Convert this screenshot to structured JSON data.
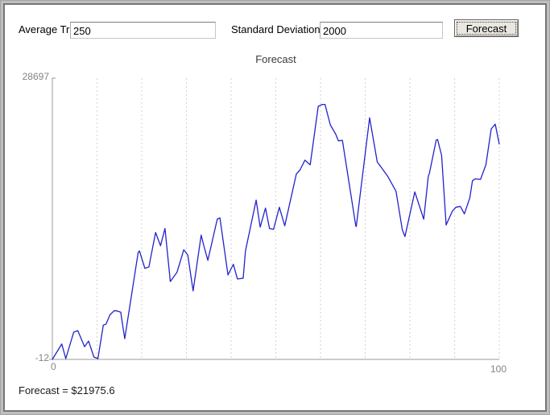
{
  "controls": {
    "average_trade_label": "Average Trade:",
    "average_trade_value": "250",
    "std_dev_label": "Standard Deviation:",
    "std_dev_value": "2000",
    "forecast_button_label": "Forecast"
  },
  "chart": {
    "title": "Forecast",
    "y_max_label": "28697",
    "y_min_label": "-12",
    "x_min_label": "0",
    "x_max_label": "100"
  },
  "status_text": "Forecast = $21975.6",
  "colors": {
    "line": "#2323cb",
    "gridline": "#d2d2d2",
    "axis": "#9a9a9a",
    "axis_label": "#848484"
  },
  "chart_data": {
    "type": "line",
    "title": "Forecast",
    "xlabel": "",
    "ylabel": "",
    "xlim": [
      0,
      100
    ],
    "ylim": [
      -12,
      28697
    ],
    "grid": "vertical-dashed",
    "x_gridline_step": 10,
    "legend": "none",
    "series": [
      {
        "name": "forecast-equity-curve",
        "color": "#2323cb",
        "points": [
          [
            0,
            -12
          ],
          [
            2.1,
            1558
          ],
          [
            3,
            69
          ],
          [
            4.8,
            2777
          ],
          [
            5.7,
            2916
          ],
          [
            7.2,
            1289
          ],
          [
            8.1,
            1858
          ],
          [
            9.3,
            232
          ],
          [
            10.2,
            69
          ],
          [
            11.4,
            3485
          ],
          [
            12,
            3591
          ],
          [
            12.9,
            4542
          ],
          [
            13.8,
            4949
          ],
          [
            14.4,
            4949
          ],
          [
            15.3,
            4811
          ],
          [
            16.2,
            2102
          ],
          [
            19.2,
            10910
          ],
          [
            19.5,
            11049
          ],
          [
            20.7,
            9284
          ],
          [
            21.6,
            9422
          ],
          [
            23.1,
            12944
          ],
          [
            24.2,
            11594
          ],
          [
            25.2,
            13350
          ],
          [
            26.4,
            7933
          ],
          [
            27.9,
            8877
          ],
          [
            29.4,
            11187
          ],
          [
            30.3,
            10642
          ],
          [
            31.5,
            6982
          ],
          [
            33.3,
            12675
          ],
          [
            33.9,
            11594
          ],
          [
            34.8,
            10098
          ],
          [
            36.9,
            14302
          ],
          [
            37.5,
            14440
          ],
          [
            39.3,
            8609
          ],
          [
            40.5,
            9691
          ],
          [
            41.4,
            8202
          ],
          [
            42.7,
            8283
          ],
          [
            43.2,
            11049
          ],
          [
            45.6,
            16254
          ],
          [
            46.5,
            13488
          ],
          [
            47.7,
            15440
          ],
          [
            48.6,
            13350
          ],
          [
            49.5,
            13268
          ],
          [
            50.8,
            15521
          ],
          [
            52,
            13626
          ],
          [
            54.6,
            18913
          ],
          [
            55.4,
            19320
          ],
          [
            56.5,
            20320
          ],
          [
            57.7,
            19857
          ],
          [
            59.5,
            25826
          ],
          [
            60.4,
            26013
          ],
          [
            61,
            26013
          ],
          [
            62.2,
            23923
          ],
          [
            63.4,
            22980
          ],
          [
            64,
            22296
          ],
          [
            64.9,
            22353
          ],
          [
            67.9,
            13626
          ],
          [
            68,
            13545
          ],
          [
            71,
            24655
          ],
          [
            72.7,
            20133
          ],
          [
            73.6,
            19588
          ],
          [
            75.1,
            18636
          ],
          [
            76.9,
            17148
          ],
          [
            78.3,
            13219
          ],
          [
            78.9,
            12536
          ],
          [
            81.1,
            17091
          ],
          [
            83.1,
            14302
          ],
          [
            84.1,
            18636
          ],
          [
            84.4,
            19043
          ],
          [
            85.9,
            22377
          ],
          [
            86.2,
            22434
          ],
          [
            87.1,
            20808
          ],
          [
            88.1,
            13707
          ],
          [
            89.5,
            15115
          ],
          [
            90.3,
            15521
          ],
          [
            91.3,
            15603
          ],
          [
            92.2,
            14846
          ],
          [
            93.4,
            16473
          ],
          [
            94,
            18229
          ],
          [
            94.6,
            18424
          ],
          [
            95.8,
            18367
          ],
          [
            97,
            19857
          ],
          [
            98.2,
            23516
          ],
          [
            99.1,
            24004
          ],
          [
            100,
            21975.6
          ]
        ]
      }
    ]
  }
}
